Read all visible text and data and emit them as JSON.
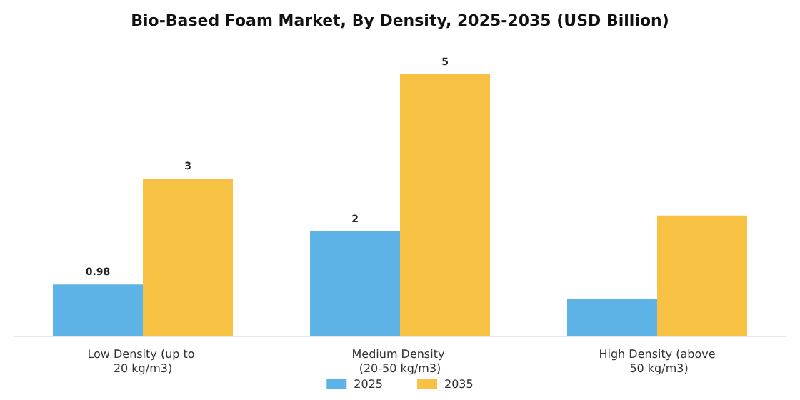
{
  "chart_data": {
    "type": "bar",
    "title": "Bio-Based Foam Market, By Density, 2025-2035 (USD Billion)",
    "categories": [
      "Low Density (up to 20 kg/m3)",
      "Medium Density (20-50 kg/m3)",
      "High Density (above 50 kg/m3)"
    ],
    "series": [
      {
        "name": "2025",
        "color": "#5db3e6",
        "values": [
          0.98,
          2,
          0.7
        ],
        "value_labels": [
          "0.98",
          "2",
          null
        ]
      },
      {
        "name": "2035",
        "color": "#f7c244",
        "values": [
          3,
          5,
          2.3
        ],
        "value_labels": [
          "3",
          "5",
          null
        ]
      }
    ],
    "legend": "bottom"
  }
}
